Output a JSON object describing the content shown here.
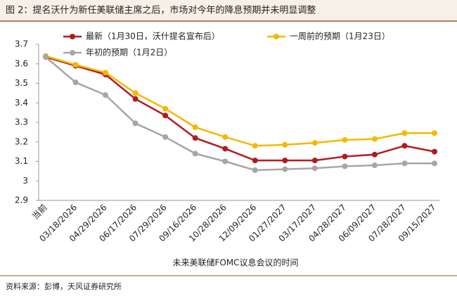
{
  "chart_data": {
    "type": "line",
    "title": "图 2：提名沃什为新任美联储主席之后，市场对今年的降息预期并未明显调整",
    "x_label": "未来美联储FOMC议息会议的时间",
    "source": "资料来源：彭博，天风证券研究所",
    "categories": [
      "当前",
      "03/18/2026",
      "04/29/2026",
      "06/17/2026",
      "07/29/2026",
      "09/16/2026",
      "10/28/2026",
      "12/09/2026",
      "01/27/2027",
      "03/17/2027",
      "04/28/2027",
      "06/09/2027",
      "07/28/2027",
      "09/15/2027"
    ],
    "series": [
      {
        "name": "最新（1月30日，沃什提名宣布后）",
        "color": "#b01c20",
        "values": [
          3.635,
          3.59,
          3.545,
          3.42,
          3.335,
          3.22,
          3.165,
          3.105,
          3.105,
          3.105,
          3.125,
          3.135,
          3.18,
          3.15
        ]
      },
      {
        "name": "一周前的预期（1月23日）",
        "color": "#f5b800",
        "values": [
          3.64,
          3.595,
          3.555,
          3.45,
          3.37,
          3.275,
          3.225,
          3.18,
          3.185,
          3.195,
          3.21,
          3.215,
          3.245,
          3.245
        ]
      },
      {
        "name": "年初的预期（1月2日）",
        "color": "#a6a6a6",
        "values": [
          3.635,
          3.505,
          3.44,
          3.295,
          3.225,
          3.14,
          3.1,
          3.055,
          3.06,
          3.065,
          3.075,
          3.08,
          3.09,
          3.09
        ]
      }
    ],
    "ylim": [
      2.9,
      3.7
    ],
    "yticks": [
      2.9,
      3,
      3.1,
      3.2,
      3.3,
      3.4,
      3.5,
      3.6,
      3.7
    ]
  }
}
